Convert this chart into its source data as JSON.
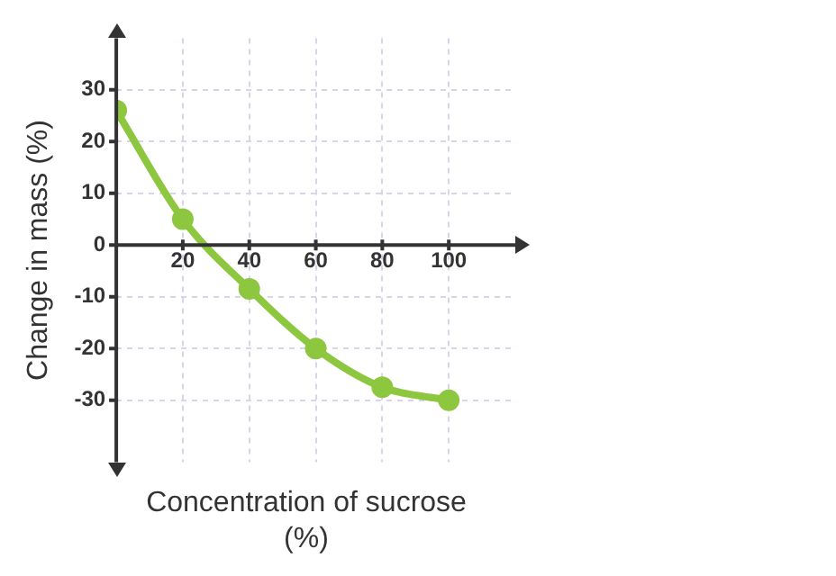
{
  "chart_data": {
    "type": "line",
    "xlabel": "Concentration of sucrose (%)",
    "ylabel": "Change in mass (%)",
    "x": [
      0,
      20,
      40,
      60,
      80,
      100
    ],
    "series": [
      {
        "color": "#8dc63f",
        "values": [
          26,
          5,
          -8.5,
          -20,
          -27.5,
          -30
        ]
      }
    ],
    "xlim": [
      0,
      120
    ],
    "ylim": [
      -42,
      40
    ],
    "xticks": [
      20,
      40,
      60,
      80,
      100
    ],
    "yticks": [
      -30,
      -20,
      -10,
      0,
      10,
      20,
      30
    ],
    "grid": true,
    "marker": "circle",
    "line_style": "solid",
    "legend": false
  }
}
